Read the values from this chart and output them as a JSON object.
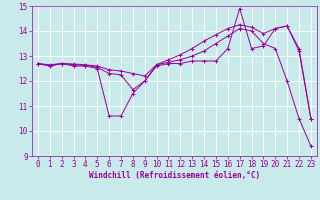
{
  "xlabel": "Windchill (Refroidissement éolien,°C)",
  "bg_color": "#c8eaea",
  "line_color": "#990099",
  "grid_color": "#ffffff",
  "xlim": [
    -0.5,
    23.5
  ],
  "ylim": [
    9,
    15
  ],
  "xticks": [
    0,
    1,
    2,
    3,
    4,
    5,
    6,
    7,
    8,
    9,
    10,
    11,
    12,
    13,
    14,
    15,
    16,
    17,
    18,
    19,
    20,
    21,
    22,
    23
  ],
  "yticks": [
    9,
    10,
    11,
    12,
    13,
    14,
    15
  ],
  "line1_x": [
    0,
    1,
    2,
    3,
    4,
    5,
    6,
    7,
    8,
    9,
    10,
    11,
    12,
    13,
    14,
    15,
    16,
    17,
    18,
    19,
    20,
    21,
    22,
    23
  ],
  "line1_y": [
    12.7,
    12.6,
    12.7,
    12.6,
    12.6,
    12.5,
    10.6,
    10.6,
    11.5,
    12.0,
    12.6,
    12.7,
    12.7,
    12.8,
    12.8,
    12.8,
    13.3,
    14.9,
    13.3,
    13.4,
    14.1,
    14.2,
    13.2,
    10.5
  ],
  "line2_x": [
    0,
    1,
    2,
    3,
    4,
    5,
    6,
    7,
    8,
    9,
    10,
    11,
    12,
    13,
    14,
    15,
    16,
    17,
    18,
    19,
    20,
    21,
    22,
    23
  ],
  "line2_y": [
    12.7,
    12.6,
    12.7,
    12.65,
    12.62,
    12.55,
    12.3,
    12.25,
    11.65,
    12.0,
    12.65,
    12.75,
    12.85,
    13.0,
    13.2,
    13.5,
    13.8,
    14.1,
    14.0,
    13.5,
    13.3,
    12.0,
    10.5,
    9.4
  ],
  "line3_x": [
    0,
    1,
    2,
    3,
    4,
    5,
    6,
    7,
    8,
    9,
    10,
    11,
    12,
    13,
    14,
    15,
    16,
    17,
    18,
    19,
    20,
    21,
    22,
    23
  ],
  "line3_y": [
    12.7,
    12.65,
    12.7,
    12.68,
    12.65,
    12.6,
    12.45,
    12.4,
    12.3,
    12.2,
    12.65,
    12.85,
    13.05,
    13.3,
    13.6,
    13.85,
    14.1,
    14.25,
    14.15,
    13.9,
    14.1,
    14.2,
    13.3,
    10.5
  ],
  "tick_fontsize": 5.5,
  "xlabel_fontsize": 5.5
}
